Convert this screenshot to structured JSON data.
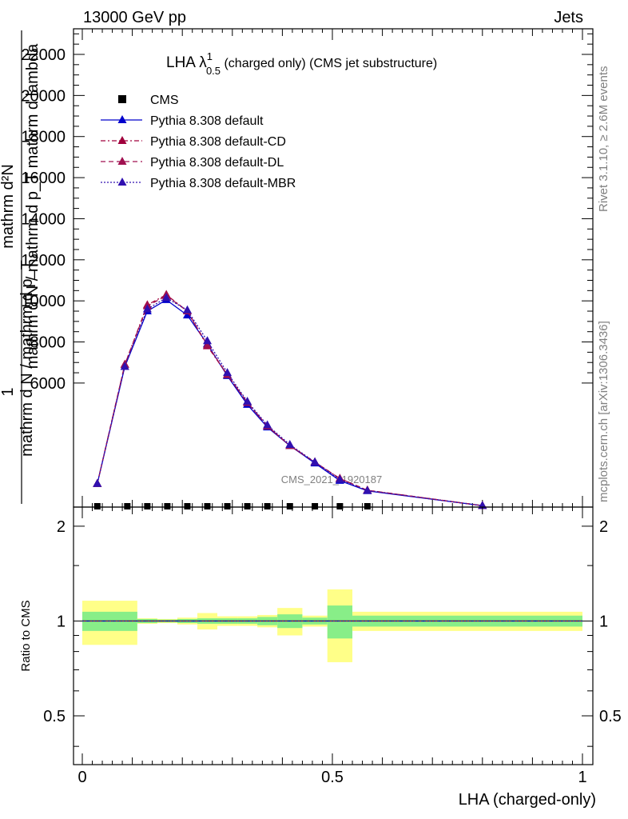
{
  "header": {
    "energy_label": "13000 GeV pp",
    "category_label": "Jets"
  },
  "side_labels": {
    "rivet": "Rivet 3.1.10, ≥ 2.6M events",
    "mcplots": "mcplots.cern.ch [arXiv:1306.3436]"
  },
  "chart_data": [
    {
      "type": "line",
      "title_main": "LHA λ",
      "title_sup": "1",
      "title_sub": "0.5",
      "title_rest": " (charged only) (CMS jet substructure)",
      "ylabel_num": "mathrm d²N",
      "ylabel_frac_num": "1",
      "ylabel_den": "mathrm d N / mathrm d p_T mathrm d lambda",
      "ylabel_den2": "mathrm d N / mathrm d p_T",
      "watermark": "CMS_2021_I1920187",
      "ylim": [
        0,
        23000
      ],
      "yticks": [
        6000,
        8000,
        10000,
        12000,
        14000,
        16000,
        18000,
        20000,
        22000
      ],
      "ytick_labels": [
        "6000",
        "8000",
        "10000",
        "12000",
        "14000",
        "16000",
        "18000",
        "20000",
        "22000"
      ],
      "legend": {
        "placement": "top-left",
        "entries": [
          {
            "label": "CMS",
            "marker": "square",
            "color": "#000000",
            "dash": ""
          },
          {
            "label": "Pythia 8.308 default",
            "marker": "triangle",
            "color": "#0000cc",
            "dash": ""
          },
          {
            "label": "Pythia 8.308 default-CD",
            "marker": "triangle",
            "color": "#a0003c",
            "dash": "6,3,2,3"
          },
          {
            "label": "Pythia 8.308 default-DL",
            "marker": "triangle",
            "color": "#a01050",
            "dash": "6,4"
          },
          {
            "label": "Pythia 8.308 default-MBR",
            "marker": "triangle",
            "color": "#3010b0",
            "dash": "2,2"
          }
        ]
      },
      "cms_points": {
        "x": [
          0.03,
          0.09,
          0.13,
          0.17,
          0.21,
          0.25,
          0.29,
          0.33,
          0.37,
          0.415,
          0.465,
          0.515,
          0.57
        ],
        "y": [
          0,
          0,
          0,
          0,
          0,
          0,
          0,
          0,
          0,
          0,
          0,
          0,
          0
        ]
      },
      "series": [
        {
          "name": "Pythia 8.308 default",
          "color": "#0000cc",
          "dash": "",
          "x": [
            0.03,
            0.085,
            0.13,
            0.168,
            0.21,
            0.25,
            0.29,
            0.33,
            0.37,
            0.415,
            0.465,
            0.515,
            0.57,
            0.8
          ],
          "y": [
            1100,
            6800,
            9500,
            10050,
            9300,
            7900,
            6350,
            4950,
            3850,
            2950,
            2100,
            1250,
            750,
            30
          ]
        },
        {
          "name": "Pythia 8.308 default-CD",
          "color": "#a0003c",
          "dash": "6,3,2,3",
          "x": [
            0.03,
            0.085,
            0.13,
            0.168,
            0.21,
            0.25,
            0.29,
            0.33,
            0.37,
            0.415,
            0.465,
            0.515,
            0.57,
            0.8
          ],
          "y": [
            1100,
            6900,
            9800,
            10300,
            9500,
            7800,
            6400,
            5050,
            3900,
            2950,
            2150,
            1350,
            780,
            30
          ]
        },
        {
          "name": "Pythia 8.308 default-DL",
          "color": "#a01050",
          "dash": "6,4",
          "x": [
            0.03,
            0.085,
            0.13,
            0.168,
            0.21,
            0.25,
            0.29,
            0.33,
            0.37,
            0.415,
            0.465,
            0.515,
            0.57,
            0.8
          ],
          "y": [
            1100,
            6900,
            9750,
            10250,
            9500,
            7850,
            6400,
            5050,
            3900,
            2950,
            2150,
            1350,
            780,
            30
          ]
        },
        {
          "name": "Pythia 8.308 default-MBR",
          "color": "#3010b0",
          "dash": "2,2",
          "x": [
            0.03,
            0.085,
            0.13,
            0.168,
            0.21,
            0.25,
            0.29,
            0.33,
            0.37,
            0.415,
            0.465,
            0.515,
            0.57,
            0.8
          ],
          "y": [
            1100,
            6800,
            9600,
            10150,
            9550,
            8050,
            6500,
            5100,
            3950,
            3000,
            2150,
            1300,
            760,
            30
          ]
        }
      ]
    },
    {
      "type": "line",
      "ylabel": "Ratio to CMS",
      "xlabel": "LHA (charged-only)",
      "xlim": [
        0,
        1
      ],
      "ylim": [
        0.35,
        2.3
      ],
      "yscale": "log",
      "yticks": [
        0.5,
        1,
        2
      ],
      "ytick_labels": [
        "0.5",
        "1",
        "2"
      ],
      "xticks": [
        0,
        0.5,
        1
      ],
      "xtick_labels": [
        "0",
        "0.5",
        "1"
      ],
      "bands": {
        "edges": [
          0,
          0.11,
          0.15,
          0.19,
          0.23,
          0.27,
          0.31,
          0.35,
          0.39,
          0.44,
          0.49,
          0.54,
          1.0
        ],
        "inner": [
          0.07,
          0.015,
          0.01,
          0.015,
          0.02,
          0.02,
          0.02,
          0.03,
          0.05,
          0.025,
          0.12,
          0.04
        ],
        "outer": [
          0.16,
          0.02,
          0.015,
          0.025,
          0.06,
          0.035,
          0.035,
          0.045,
          0.1,
          0.04,
          0.26,
          0.07
        ],
        "inner_color": "#88ee88",
        "outer_color": "#ffff88"
      }
    }
  ]
}
